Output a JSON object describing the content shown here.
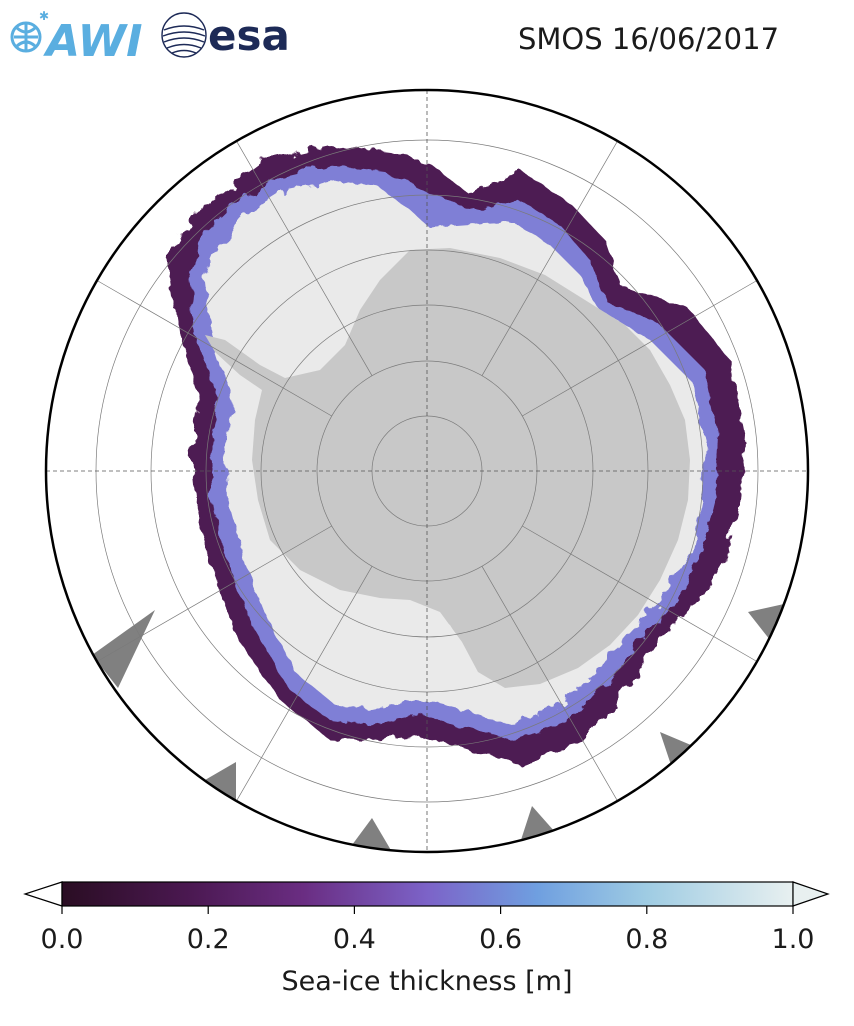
{
  "title": "SMOS 16/06/2017",
  "logos": {
    "awi": "AWI",
    "esa": "esa"
  },
  "colors": {
    "land": "#c8c8c8",
    "thick_ice": "#eaeaea",
    "grid": "#7a7a7a",
    "outline": "#000000",
    "dark_shapes": "#808080",
    "awi_blue": "#5aaee0",
    "esa_navy": "#1d2a57"
  },
  "colorbar": {
    "label": "Sea-ice thickness [m]",
    "ticks": [
      "0.0",
      "0.2",
      "0.4",
      "0.6",
      "0.8",
      "1.0"
    ],
    "range": [
      0.0,
      1.0
    ],
    "stops": [
      "#2a0d23",
      "#4a1850",
      "#6a2d82",
      "#7c63c8",
      "#6f9fe0",
      "#9fcce3",
      "#e8f0f0"
    ]
  }
}
